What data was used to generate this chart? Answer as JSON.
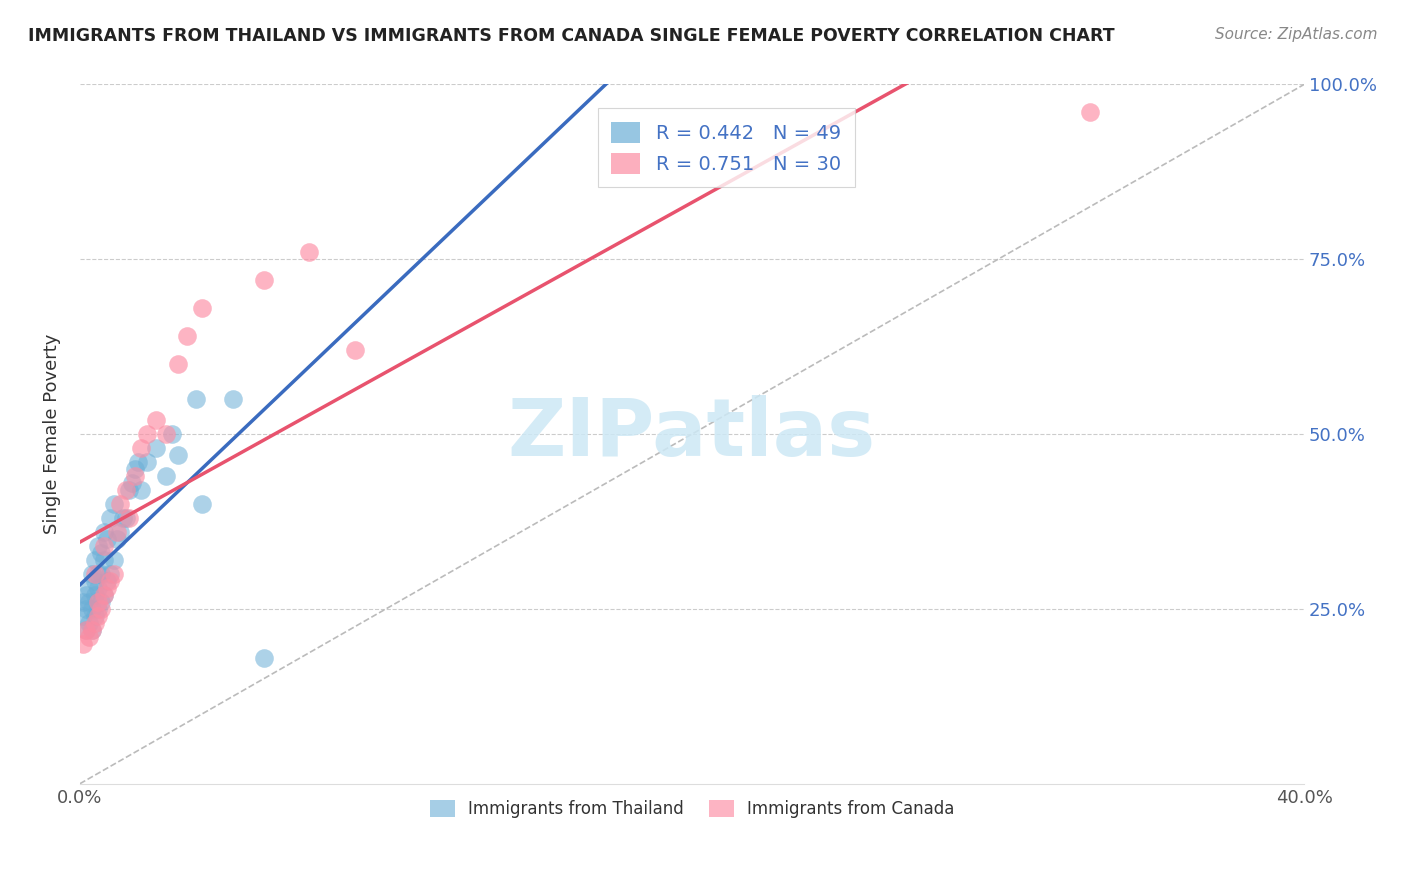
{
  "title": "IMMIGRANTS FROM THAILAND VS IMMIGRANTS FROM CANADA SINGLE FEMALE POVERTY CORRELATION CHART",
  "source": "Source: ZipAtlas.com",
  "ylabel": "Single Female Poverty",
  "xlim": [
    0.0,
    0.4
  ],
  "ylim": [
    0.0,
    1.0
  ],
  "thailand_color": "#6baed6",
  "canada_color": "#fc8da3",
  "thailand_R": 0.442,
  "thailand_N": 49,
  "canada_R": 0.751,
  "canada_N": 30,
  "thailand_line_color": "#3a6bbf",
  "canada_line_color": "#e8536e",
  "diagonal_color": "#bbbbbb",
  "watermark_color": "#cde8f5",
  "thailand_x": [
    0.001,
    0.001,
    0.002,
    0.002,
    0.002,
    0.003,
    0.003,
    0.003,
    0.004,
    0.004,
    0.004,
    0.005,
    0.005,
    0.005,
    0.005,
    0.006,
    0.006,
    0.006,
    0.006,
    0.007,
    0.007,
    0.007,
    0.008,
    0.008,
    0.008,
    0.009,
    0.009,
    0.01,
    0.01,
    0.011,
    0.011,
    0.012,
    0.013,
    0.014,
    0.015,
    0.016,
    0.017,
    0.018,
    0.019,
    0.02,
    0.022,
    0.025,
    0.028,
    0.03,
    0.032,
    0.038,
    0.04,
    0.05,
    0.06
  ],
  "thailand_y": [
    0.24,
    0.26,
    0.22,
    0.25,
    0.27,
    0.23,
    0.26,
    0.28,
    0.22,
    0.25,
    0.3,
    0.24,
    0.27,
    0.29,
    0.32,
    0.25,
    0.28,
    0.3,
    0.34,
    0.26,
    0.3,
    0.33,
    0.27,
    0.32,
    0.36,
    0.29,
    0.35,
    0.3,
    0.38,
    0.32,
    0.4,
    0.35,
    0.36,
    0.38,
    0.38,
    0.42,
    0.43,
    0.45,
    0.46,
    0.42,
    0.46,
    0.48,
    0.44,
    0.5,
    0.47,
    0.55,
    0.4,
    0.55,
    0.18
  ],
  "canada_x": [
    0.001,
    0.002,
    0.003,
    0.004,
    0.005,
    0.005,
    0.006,
    0.006,
    0.007,
    0.008,
    0.008,
    0.009,
    0.01,
    0.011,
    0.012,
    0.013,
    0.015,
    0.016,
    0.018,
    0.02,
    0.022,
    0.025,
    0.028,
    0.032,
    0.035,
    0.04,
    0.06,
    0.075,
    0.09,
    0.33
  ],
  "canada_y": [
    0.2,
    0.22,
    0.21,
    0.22,
    0.23,
    0.3,
    0.24,
    0.26,
    0.25,
    0.27,
    0.34,
    0.28,
    0.29,
    0.3,
    0.36,
    0.4,
    0.42,
    0.38,
    0.44,
    0.48,
    0.5,
    0.52,
    0.5,
    0.6,
    0.64,
    0.68,
    0.72,
    0.76,
    0.62,
    0.96
  ],
  "legend_R_color": "#4472c4",
  "legend_N_color": "#4472c4"
}
